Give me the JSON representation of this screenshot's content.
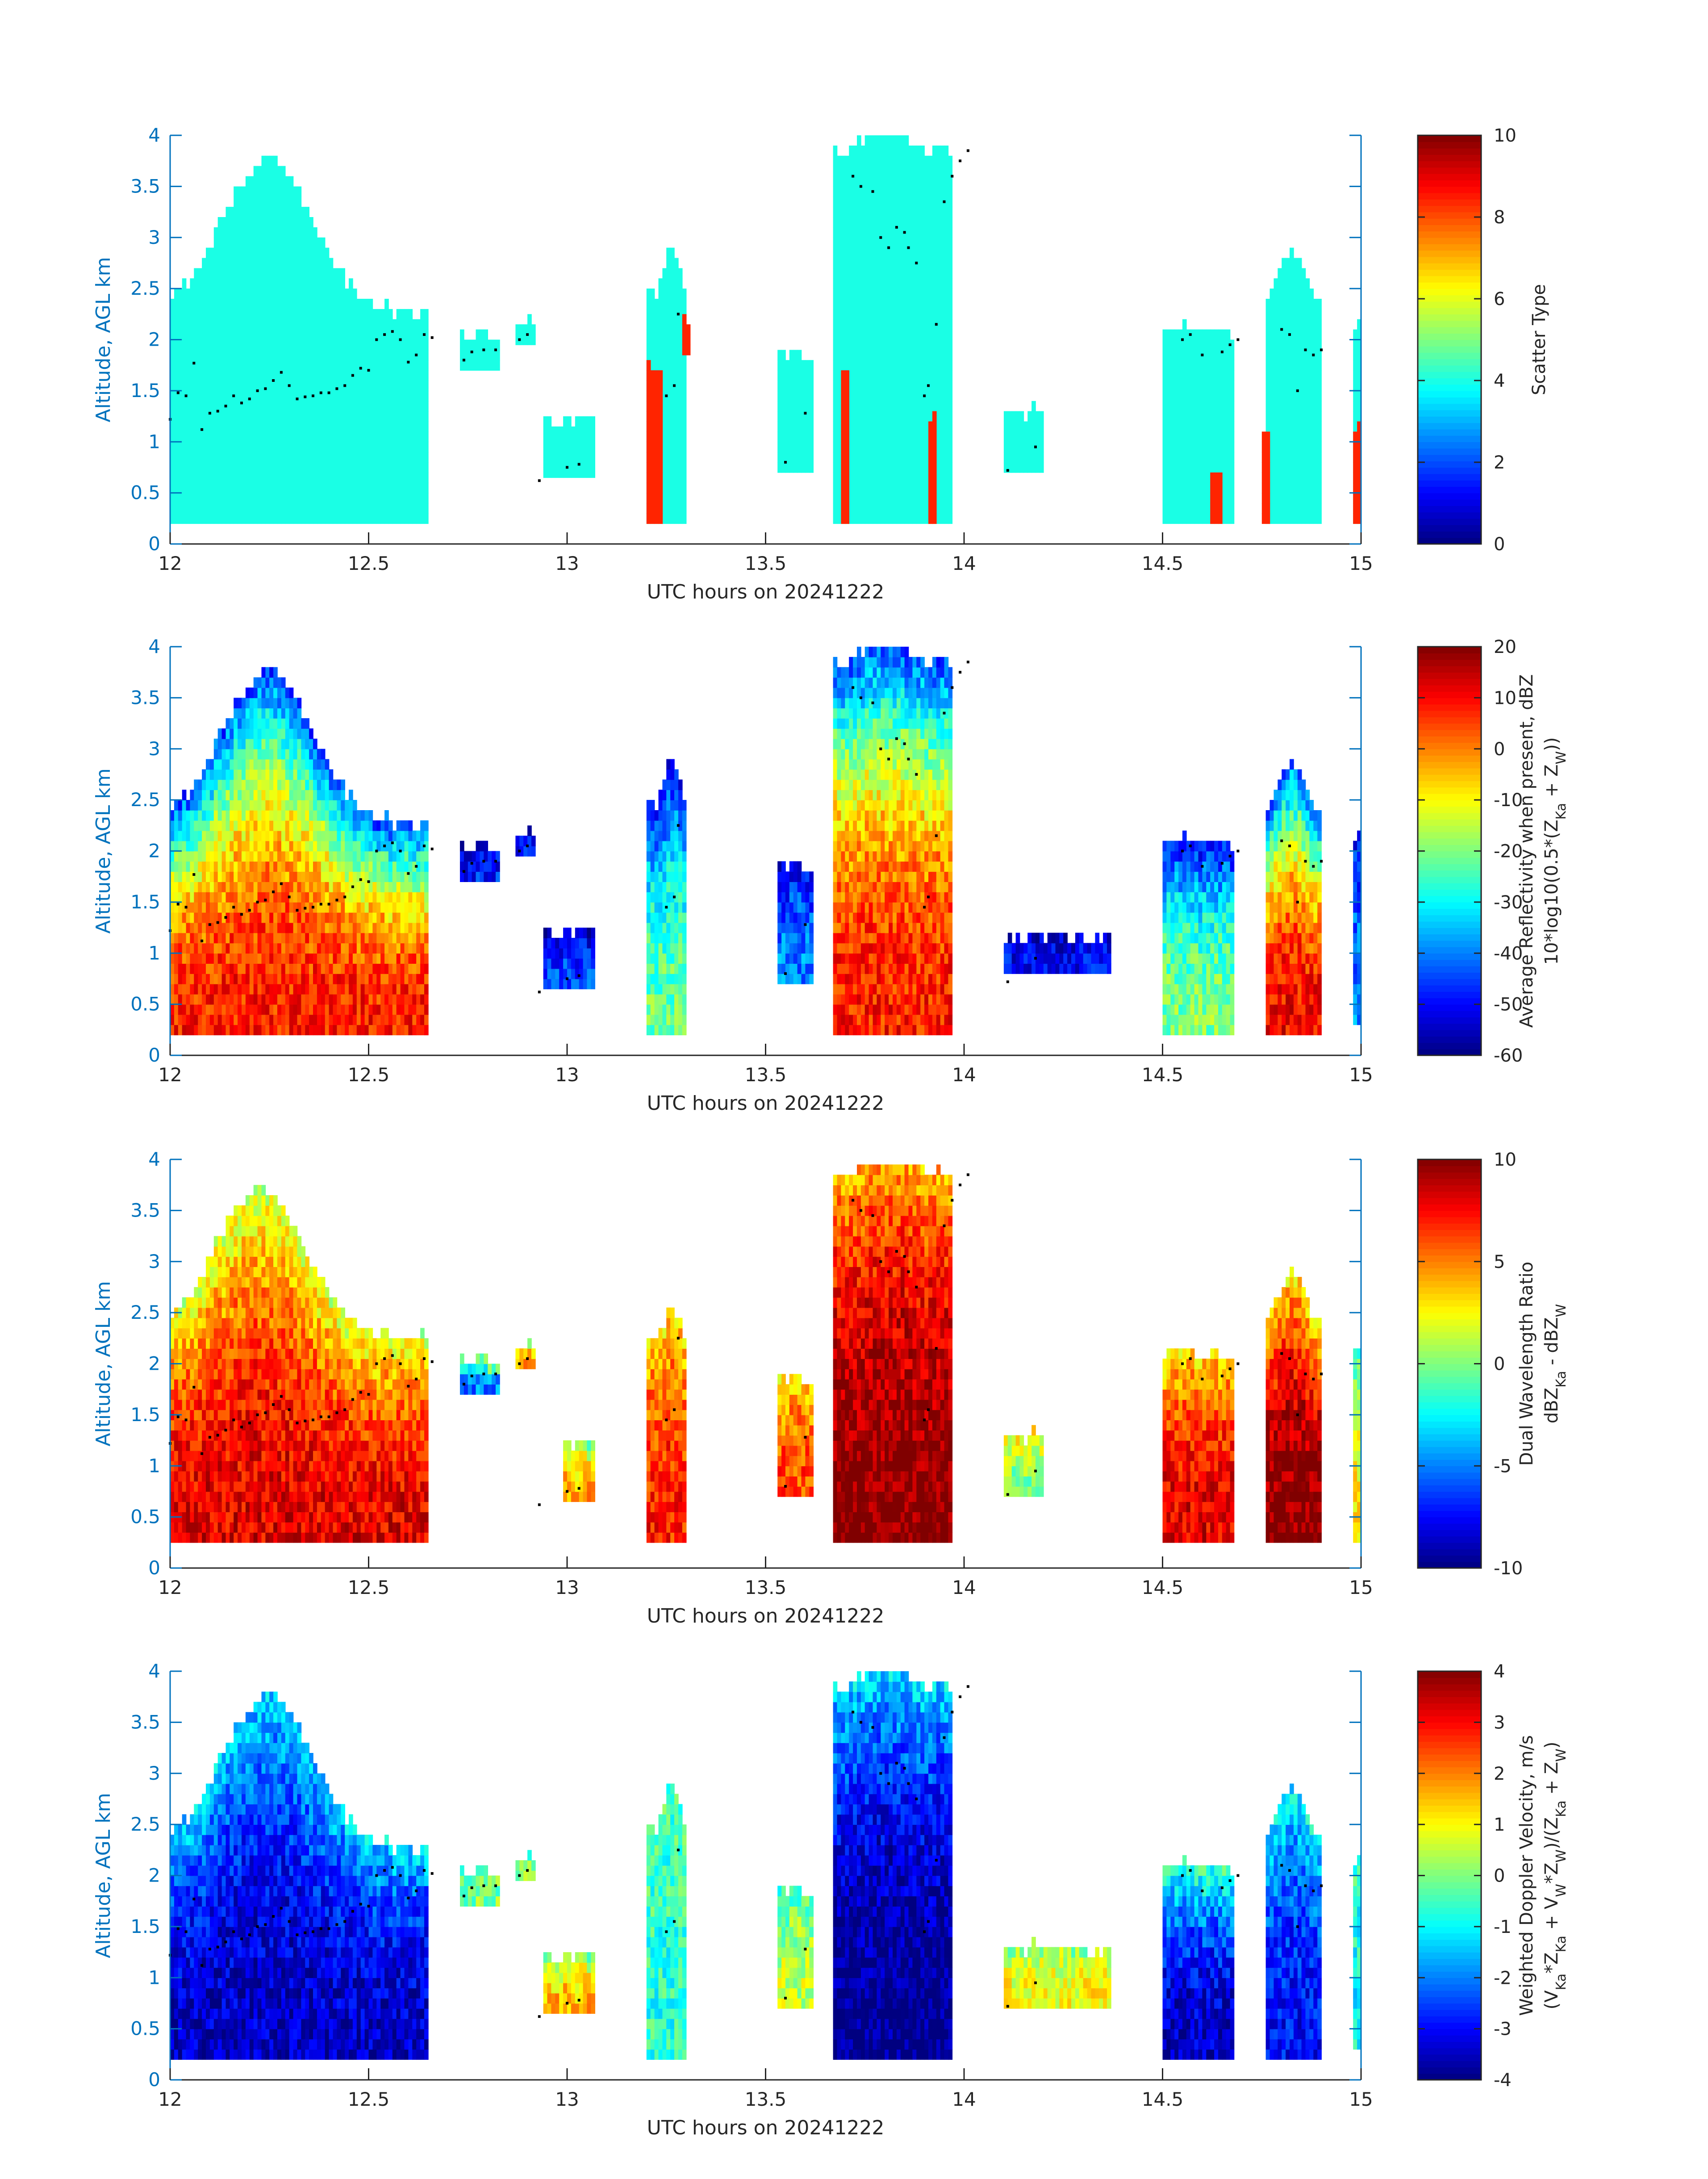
{
  "figure": {
    "colormap": "jet",
    "axis_color": "#0072BD",
    "label_color": "#262626"
  },
  "chart_data": [
    {
      "type": "heatmap",
      "xlabel": "UTC hours on 20241222",
      "ylabel": "Altitude, AGL km",
      "xlim": [
        12,
        15
      ],
      "ylim": [
        0,
        4
      ],
      "xticks": [
        "12",
        "12.5",
        "13",
        "13.5",
        "14",
        "14.5",
        "15"
      ],
      "yticks": [
        "0",
        "0.5",
        "1",
        "1.5",
        "2",
        "2.5",
        "3",
        "3.5",
        "4"
      ],
      "colorbar": {
        "label_lines": [
          "Scatter Type"
        ],
        "clim": [
          0,
          10
        ],
        "ticks": [
          "0",
          "2",
          "4",
          "6",
          "8",
          "10"
        ]
      },
      "dominant_class": 4,
      "secondary_class": 8.4,
      "features": [
        {
          "x0": 12.0,
          "x1": 12.65,
          "ybot": 0.2,
          "ytop": 2.2,
          "peak_x": 12.24,
          "peak_top": 3.7,
          "value": 4
        },
        {
          "x0": 12.73,
          "x1": 12.83,
          "ybot": 1.7,
          "ytop": 2.0,
          "value": 4
        },
        {
          "x0": 12.87,
          "x1": 12.92,
          "ybot": 1.95,
          "ytop": 2.15,
          "value": 4
        },
        {
          "x0": 12.94,
          "x1": 13.07,
          "ybot": 0.65,
          "ytop": 1.15,
          "value": 4
        },
        {
          "x0": 13.2,
          "x1": 13.3,
          "ybot": 0.2,
          "ytop": 2.4,
          "peak_x": 13.26,
          "peak_top": 2.9,
          "value": 4
        },
        {
          "x0": 13.53,
          "x1": 13.62,
          "ybot": 0.7,
          "ytop": 1.8,
          "value": 4
        },
        {
          "x0": 13.67,
          "x1": 13.97,
          "ybot": 0.2,
          "ytop": 3.8,
          "peak_x": 13.8,
          "peak_top": 4.0,
          "value": 4
        },
        {
          "x0": 14.1,
          "x1": 14.2,
          "ybot": 0.7,
          "ytop": 1.25,
          "value": 4
        },
        {
          "x0": 14.5,
          "x1": 14.68,
          "ybot": 0.2,
          "ytop": 2.05,
          "value": 4
        },
        {
          "x0": 14.76,
          "x1": 14.9,
          "ybot": 0.2,
          "ytop": 2.4,
          "peak_x": 14.82,
          "peak_top": 2.85,
          "value": 4
        },
        {
          "x0": 14.98,
          "x1": 15.0,
          "ybot": 0.2,
          "ytop": 2.1,
          "value": 4
        },
        {
          "x0": 13.2,
          "x1": 13.24,
          "ybot": 0.2,
          "ytop": 1.7,
          "value": 8.4
        },
        {
          "x0": 13.29,
          "x1": 13.31,
          "ybot": 1.85,
          "ytop": 2.1,
          "value": 8.4
        },
        {
          "x0": 13.69,
          "x1": 13.71,
          "ybot": 0.2,
          "ytop": 1.65,
          "value": 8.4
        },
        {
          "x0": 13.91,
          "x1": 13.93,
          "ybot": 0.2,
          "ytop": 1.25,
          "value": 8.4
        },
        {
          "x0": 14.62,
          "x1": 14.65,
          "ybot": 0.2,
          "ytop": 0.65,
          "value": 8.4
        },
        {
          "x0": 14.75,
          "x1": 14.77,
          "ybot": 0.2,
          "ytop": 1.0,
          "value": 8.4
        },
        {
          "x0": 14.98,
          "x1": 15.0,
          "ybot": 0.2,
          "ytop": 1.1,
          "value": 8.4
        }
      ]
    },
    {
      "type": "heatmap",
      "xlabel": "UTC hours on 20241222",
      "ylabel": "Altitude, AGL km",
      "xlim": [
        12,
        15
      ],
      "ylim": [
        0,
        4
      ],
      "xticks": [
        "12",
        "12.5",
        "13",
        "13.5",
        "14",
        "14.5",
        "15"
      ],
      "yticks": [
        "0",
        "0.5",
        "1",
        "1.5",
        "2",
        "2.5",
        "3",
        "3.5",
        "4"
      ],
      "colorbar": {
        "label_lines": [
          "Average Reflectivity when present, dBZ",
          "10*log10(0.5*(Z_Ka + Z_W))"
        ],
        "clim": [
          -60,
          20
        ],
        "ticks": [
          "-60",
          "-50",
          "-40",
          "-30",
          "-20",
          "-10",
          "0",
          "10",
          "20"
        ]
      },
      "features": [
        {
          "x0": 12.0,
          "x1": 12.65,
          "ybot": 0.2,
          "ytop": 2.2,
          "peak_x": 12.24,
          "peak_top": 3.7,
          "core": 8,
          "edge": -45
        },
        {
          "x0": 12.73,
          "x1": 12.83,
          "ybot": 1.7,
          "ytop": 2.0,
          "core": -48,
          "edge": -55
        },
        {
          "x0": 12.87,
          "x1": 12.92,
          "ybot": 1.95,
          "ytop": 2.15,
          "core": -50,
          "edge": -55
        },
        {
          "x0": 12.94,
          "x1": 13.07,
          "ybot": 0.65,
          "ytop": 1.15,
          "core": -45,
          "edge": -55
        },
        {
          "x0": 13.2,
          "x1": 13.3,
          "ybot": 0.2,
          "ytop": 2.4,
          "peak_x": 13.26,
          "peak_top": 2.9,
          "core": -22,
          "edge": -50
        },
        {
          "x0": 13.53,
          "x1": 13.62,
          "ybot": 0.7,
          "ytop": 1.8,
          "core": -40,
          "edge": -52
        },
        {
          "x0": 13.67,
          "x1": 13.97,
          "ybot": 0.2,
          "ytop": 3.8,
          "peak_x": 13.8,
          "peak_top": 4.0,
          "core": 8,
          "edge": -45
        },
        {
          "x0": 14.1,
          "x1": 14.37,
          "ybot": 0.8,
          "ytop": 1.1,
          "core": -50,
          "edge": -55
        },
        {
          "x0": 14.5,
          "x1": 14.68,
          "ybot": 0.2,
          "ytop": 2.05,
          "core": -20,
          "edge": -50
        },
        {
          "x0": 14.76,
          "x1": 14.9,
          "ybot": 0.2,
          "ytop": 2.4,
          "peak_x": 14.82,
          "peak_top": 2.85,
          "core": 10,
          "edge": -45
        },
        {
          "x0": 14.98,
          "x1": 15.0,
          "ybot": 0.3,
          "ytop": 2.1,
          "core": -40,
          "edge": -50
        }
      ]
    },
    {
      "type": "heatmap",
      "xlabel": "UTC hours on 20241222",
      "ylabel": "Altitude, AGL km",
      "xlim": [
        12,
        15
      ],
      "ylim": [
        0,
        4
      ],
      "xticks": [
        "12",
        "12.5",
        "13",
        "13.5",
        "14",
        "14.5",
        "15"
      ],
      "yticks": [
        "0",
        "0.5",
        "1",
        "1.5",
        "2",
        "2.5",
        "3",
        "3.5",
        "4"
      ],
      "colorbar": {
        "label_lines": [
          "Dual Wavelength Ratio",
          "dBZ_Ka - dBZ_W"
        ],
        "clim": [
          -10,
          10
        ],
        "ticks": [
          "-10",
          "-5",
          "0",
          "5",
          "10"
        ]
      },
      "features": [
        {
          "x0": 12.0,
          "x1": 12.65,
          "ybot": 0.25,
          "ytop": 2.2,
          "peak_x": 12.22,
          "peak_top": 3.65,
          "core": 8,
          "edge": 1.5
        },
        {
          "x0": 12.73,
          "x1": 12.83,
          "ybot": 1.7,
          "ytop": 2.0,
          "core": -5,
          "edge": 2
        },
        {
          "x0": 12.87,
          "x1": 12.92,
          "ybot": 1.95,
          "ytop": 2.15,
          "core": 4,
          "edge": 0
        },
        {
          "x0": 12.99,
          "x1": 13.07,
          "ybot": 0.65,
          "ytop": 1.15,
          "core": 4,
          "edge": 0
        },
        {
          "x0": 13.2,
          "x1": 13.3,
          "ybot": 0.25,
          "ytop": 2.2,
          "peak_x": 13.26,
          "peak_top": 2.55,
          "core": 7,
          "edge": 3
        },
        {
          "x0": 13.53,
          "x1": 13.62,
          "ybot": 0.7,
          "ytop": 1.8,
          "core": 6,
          "edge": 3
        },
        {
          "x0": 13.67,
          "x1": 13.97,
          "ybot": 0.25,
          "ytop": 3.8,
          "peak_x": 13.8,
          "peak_top": 4.0,
          "core": 10,
          "edge": 4
        },
        {
          "x0": 14.1,
          "x1": 14.2,
          "ybot": 0.7,
          "ytop": 1.25,
          "core": 0,
          "edge": 3
        },
        {
          "x0": 14.5,
          "x1": 14.68,
          "ybot": 0.25,
          "ytop": 2.05,
          "core": 8,
          "edge": 3
        },
        {
          "x0": 14.76,
          "x1": 14.9,
          "ybot": 0.25,
          "ytop": 2.4,
          "peak_x": 14.82,
          "peak_top": 2.85,
          "core": 10,
          "edge": 3
        },
        {
          "x0": 14.98,
          "x1": 15.0,
          "ybot": 0.25,
          "ytop": 2.1,
          "core": 3,
          "edge": -1
        }
      ]
    },
    {
      "type": "heatmap",
      "xlabel": "UTC hours on 20241222",
      "ylabel": "Altitude, AGL km",
      "xlim": [
        12,
        15
      ],
      "ylim": [
        0,
        4
      ],
      "xticks": [
        "12",
        "12.5",
        "13",
        "13.5",
        "14",
        "14.5",
        "15"
      ],
      "yticks": [
        "0",
        "0.5",
        "1",
        "1.5",
        "2",
        "2.5",
        "3",
        "3.5",
        "4"
      ],
      "colorbar": {
        "label_lines": [
          "Weighted Doppler Velocity, m/s",
          "(V_Ka*Z_Ka + V_W*Z_W)/(Z_Ka + Z_W)"
        ],
        "clim": [
          -4,
          4
        ],
        "ticks": [
          "-4",
          "-3",
          "-2",
          "-1",
          "0",
          "1",
          "2",
          "3",
          "4"
        ]
      },
      "features": [
        {
          "x0": 12.0,
          "x1": 12.65,
          "ybot": 0.2,
          "ytop": 2.2,
          "peak_x": 12.24,
          "peak_top": 3.7,
          "core": -3.5,
          "edge": -1.3
        },
        {
          "x0": 12.73,
          "x1": 12.83,
          "ybot": 1.7,
          "ytop": 2.0,
          "core": 0,
          "edge": -0.3
        },
        {
          "x0": 12.87,
          "x1": 12.92,
          "ybot": 1.95,
          "ytop": 2.15,
          "core": 0,
          "edge": -0.5
        },
        {
          "x0": 12.94,
          "x1": 13.07,
          "ybot": 0.65,
          "ytop": 1.15,
          "core": 1.5,
          "edge": 0
        },
        {
          "x0": 13.2,
          "x1": 13.3,
          "ybot": 0.2,
          "ytop": 2.4,
          "peak_x": 13.26,
          "peak_top": 2.9,
          "core": -0.7,
          "edge": -0.3
        },
        {
          "x0": 13.53,
          "x1": 13.62,
          "ybot": 0.7,
          "ytop": 1.8,
          "core": 0.5,
          "edge": -0.5
        },
        {
          "x0": 13.67,
          "x1": 13.97,
          "ybot": 0.2,
          "ytop": 3.8,
          "peak_x": 13.8,
          "peak_top": 4.0,
          "core": -4,
          "edge": -1.2
        },
        {
          "x0": 14.1,
          "x1": 14.37,
          "ybot": 0.7,
          "ytop": 1.25,
          "core": 1,
          "edge": 0
        },
        {
          "x0": 14.5,
          "x1": 14.68,
          "ybot": 0.2,
          "ytop": 2.05,
          "core": -3.5,
          "edge": -0.5
        },
        {
          "x0": 14.76,
          "x1": 14.9,
          "ybot": 0.2,
          "ytop": 2.4,
          "peak_x": 14.82,
          "peak_top": 2.85,
          "core": -3,
          "edge": -1
        },
        {
          "x0": 14.98,
          "x1": 15.0,
          "ybot": 0.3,
          "ytop": 2.1,
          "core": -1,
          "edge": -0.5
        }
      ]
    }
  ],
  "cloud_top_points": [
    [
      12.0,
      1.22
    ],
    [
      12.02,
      1.48
    ],
    [
      12.04,
      1.45
    ],
    [
      12.06,
      1.77
    ],
    [
      12.08,
      1.12
    ],
    [
      12.1,
      1.28
    ],
    [
      12.12,
      1.3
    ],
    [
      12.14,
      1.35
    ],
    [
      12.16,
      1.45
    ],
    [
      12.18,
      1.38
    ],
    [
      12.2,
      1.42
    ],
    [
      12.22,
      1.5
    ],
    [
      12.24,
      1.52
    ],
    [
      12.26,
      1.6
    ],
    [
      12.28,
      1.68
    ],
    [
      12.3,
      1.55
    ],
    [
      12.32,
      1.42
    ],
    [
      12.34,
      1.44
    ],
    [
      12.36,
      1.45
    ],
    [
      12.38,
      1.48
    ],
    [
      12.4,
      1.48
    ],
    [
      12.42,
      1.52
    ],
    [
      12.44,
      1.55
    ],
    [
      12.46,
      1.65
    ],
    [
      12.48,
      1.72
    ],
    [
      12.5,
      1.7
    ],
    [
      12.52,
      2.0
    ],
    [
      12.54,
      2.05
    ],
    [
      12.56,
      2.08
    ],
    [
      12.58,
      2.0
    ],
    [
      12.6,
      1.78
    ],
    [
      12.62,
      1.85
    ],
    [
      12.64,
      2.05
    ],
    [
      12.66,
      2.02
    ],
    [
      12.74,
      1.8
    ],
    [
      12.76,
      1.88
    ],
    [
      12.79,
      1.9
    ],
    [
      12.82,
      1.9
    ],
    [
      12.88,
      2.0
    ],
    [
      12.9,
      2.05
    ],
    [
      12.93,
      0.62
    ],
    [
      13.0,
      0.75
    ],
    [
      13.03,
      0.78
    ],
    [
      13.25,
      1.45
    ],
    [
      13.27,
      1.55
    ],
    [
      13.28,
      2.25
    ],
    [
      13.55,
      0.8
    ],
    [
      13.6,
      1.28
    ],
    [
      13.72,
      3.6
    ],
    [
      13.74,
      3.5
    ],
    [
      13.77,
      3.45
    ],
    [
      13.79,
      3.0
    ],
    [
      13.81,
      2.9
    ],
    [
      13.83,
      3.1
    ],
    [
      13.85,
      3.05
    ],
    [
      13.86,
      2.9
    ],
    [
      13.88,
      2.75
    ],
    [
      13.9,
      1.45
    ],
    [
      13.91,
      1.55
    ],
    [
      13.93,
      2.15
    ],
    [
      13.95,
      3.35
    ],
    [
      13.97,
      3.6
    ],
    [
      13.99,
      3.75
    ],
    [
      14.01,
      3.85
    ],
    [
      14.11,
      0.72
    ],
    [
      14.18,
      0.95
    ],
    [
      14.55,
      2.0
    ],
    [
      14.57,
      2.05
    ],
    [
      14.6,
      1.85
    ],
    [
      14.65,
      1.88
    ],
    [
      14.67,
      1.95
    ],
    [
      14.69,
      2.0
    ],
    [
      14.8,
      2.1
    ],
    [
      14.82,
      2.05
    ],
    [
      14.84,
      1.5
    ],
    [
      14.86,
      1.9
    ],
    [
      14.88,
      1.85
    ],
    [
      14.9,
      1.9
    ]
  ]
}
